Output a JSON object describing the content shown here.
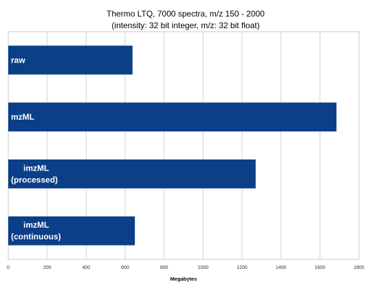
{
  "chart_data": {
    "type": "bar",
    "orientation": "horizontal",
    "title": "Thermo LTQ, 7000 spectra, m/z 150 - 2000",
    "subtitle": "(intensity: 32 bit integer, m/z: 32 bit float)",
    "xlabel": "Megabytes",
    "ylabel": "",
    "categories": [
      [
        "raw"
      ],
      [
        "mzML"
      ],
      [
        "imzML",
        "(processed)"
      ],
      [
        "imzML",
        "(continuous)"
      ]
    ],
    "values": [
      638,
      1685,
      1270,
      650
    ],
    "xlim": [
      0,
      1800
    ],
    "xticks": [
      "0",
      "200",
      "400",
      "600",
      "800",
      "1000",
      "1200",
      "1400",
      "1600",
      "1800"
    ],
    "grid": "vertical",
    "legend": "none",
    "bar_color": "#0b3f87"
  }
}
